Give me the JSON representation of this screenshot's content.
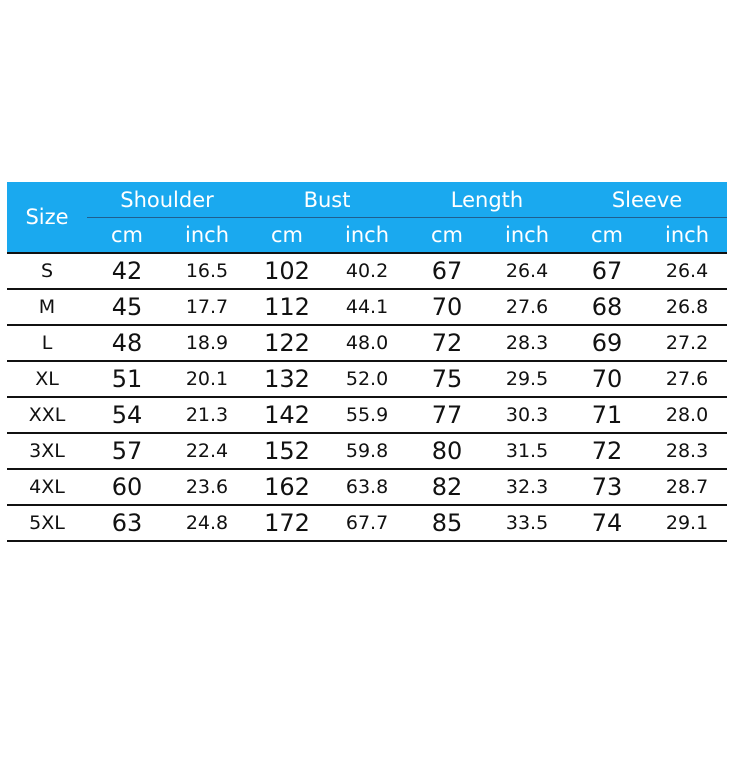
{
  "header_color": "#1aa9ef",
  "size_label": "Size",
  "groups": [
    "Shoulder",
    "Bust",
    "Length",
    "Sleeve"
  ],
  "units": [
    "cm",
    "inch"
  ],
  "rows": [
    [
      "S",
      "42",
      "16.5",
      "102",
      "40.2",
      "67",
      "26.4",
      "67",
      "26.4"
    ],
    [
      "M",
      "45",
      "17.7",
      "112",
      "44.1",
      "70",
      "27.6",
      "68",
      "26.8"
    ],
    [
      "L",
      "48",
      "18.9",
      "122",
      "48.0",
      "72",
      "28.3",
      "69",
      "27.2"
    ],
    [
      "XL",
      "51",
      "20.1",
      "132",
      "52.0",
      "75",
      "29.5",
      "70",
      "27.6"
    ],
    [
      "XXL",
      "54",
      "21.3",
      "142",
      "55.9",
      "77",
      "30.3",
      "71",
      "28.0"
    ],
    [
      "3XL",
      "57",
      "22.4",
      "152",
      "59.8",
      "80",
      "31.5",
      "72",
      "28.3"
    ],
    [
      "4XL",
      "60",
      "23.6",
      "162",
      "63.8",
      "82",
      "32.3",
      "73",
      "28.7"
    ],
    [
      "5XL",
      "63",
      "24.8",
      "172",
      "67.7",
      "85",
      "33.5",
      "74",
      "29.1"
    ]
  ]
}
